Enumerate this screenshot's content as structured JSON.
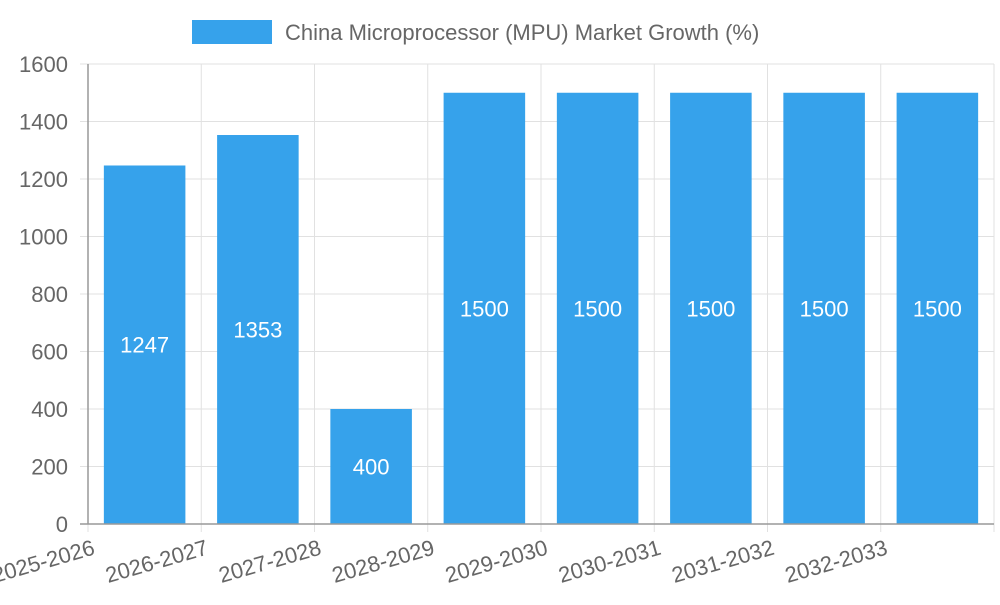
{
  "chart_data": {
    "type": "bar",
    "title": "",
    "xlabel": "",
    "ylabel": "",
    "categories": [
      "2025-2026",
      "2026-2027",
      "2027-2028",
      "2028-2029",
      "2029-2030",
      "2030-2031",
      "2031-2032",
      "2032-2033"
    ],
    "series": [
      {
        "name": "China Microprocessor (MPU) Market Growth (%)",
        "values": [
          1247,
          1353,
          400,
          1500,
          1500,
          1500,
          1500,
          1500
        ],
        "color": "#36A2EB"
      }
    ],
    "ylim": [
      0,
      1600
    ],
    "yticks": [
      0,
      200,
      400,
      600,
      800,
      1000,
      1200,
      1400,
      1600
    ],
    "grid": true,
    "legend_position": "top-center",
    "data_labels": true
  }
}
